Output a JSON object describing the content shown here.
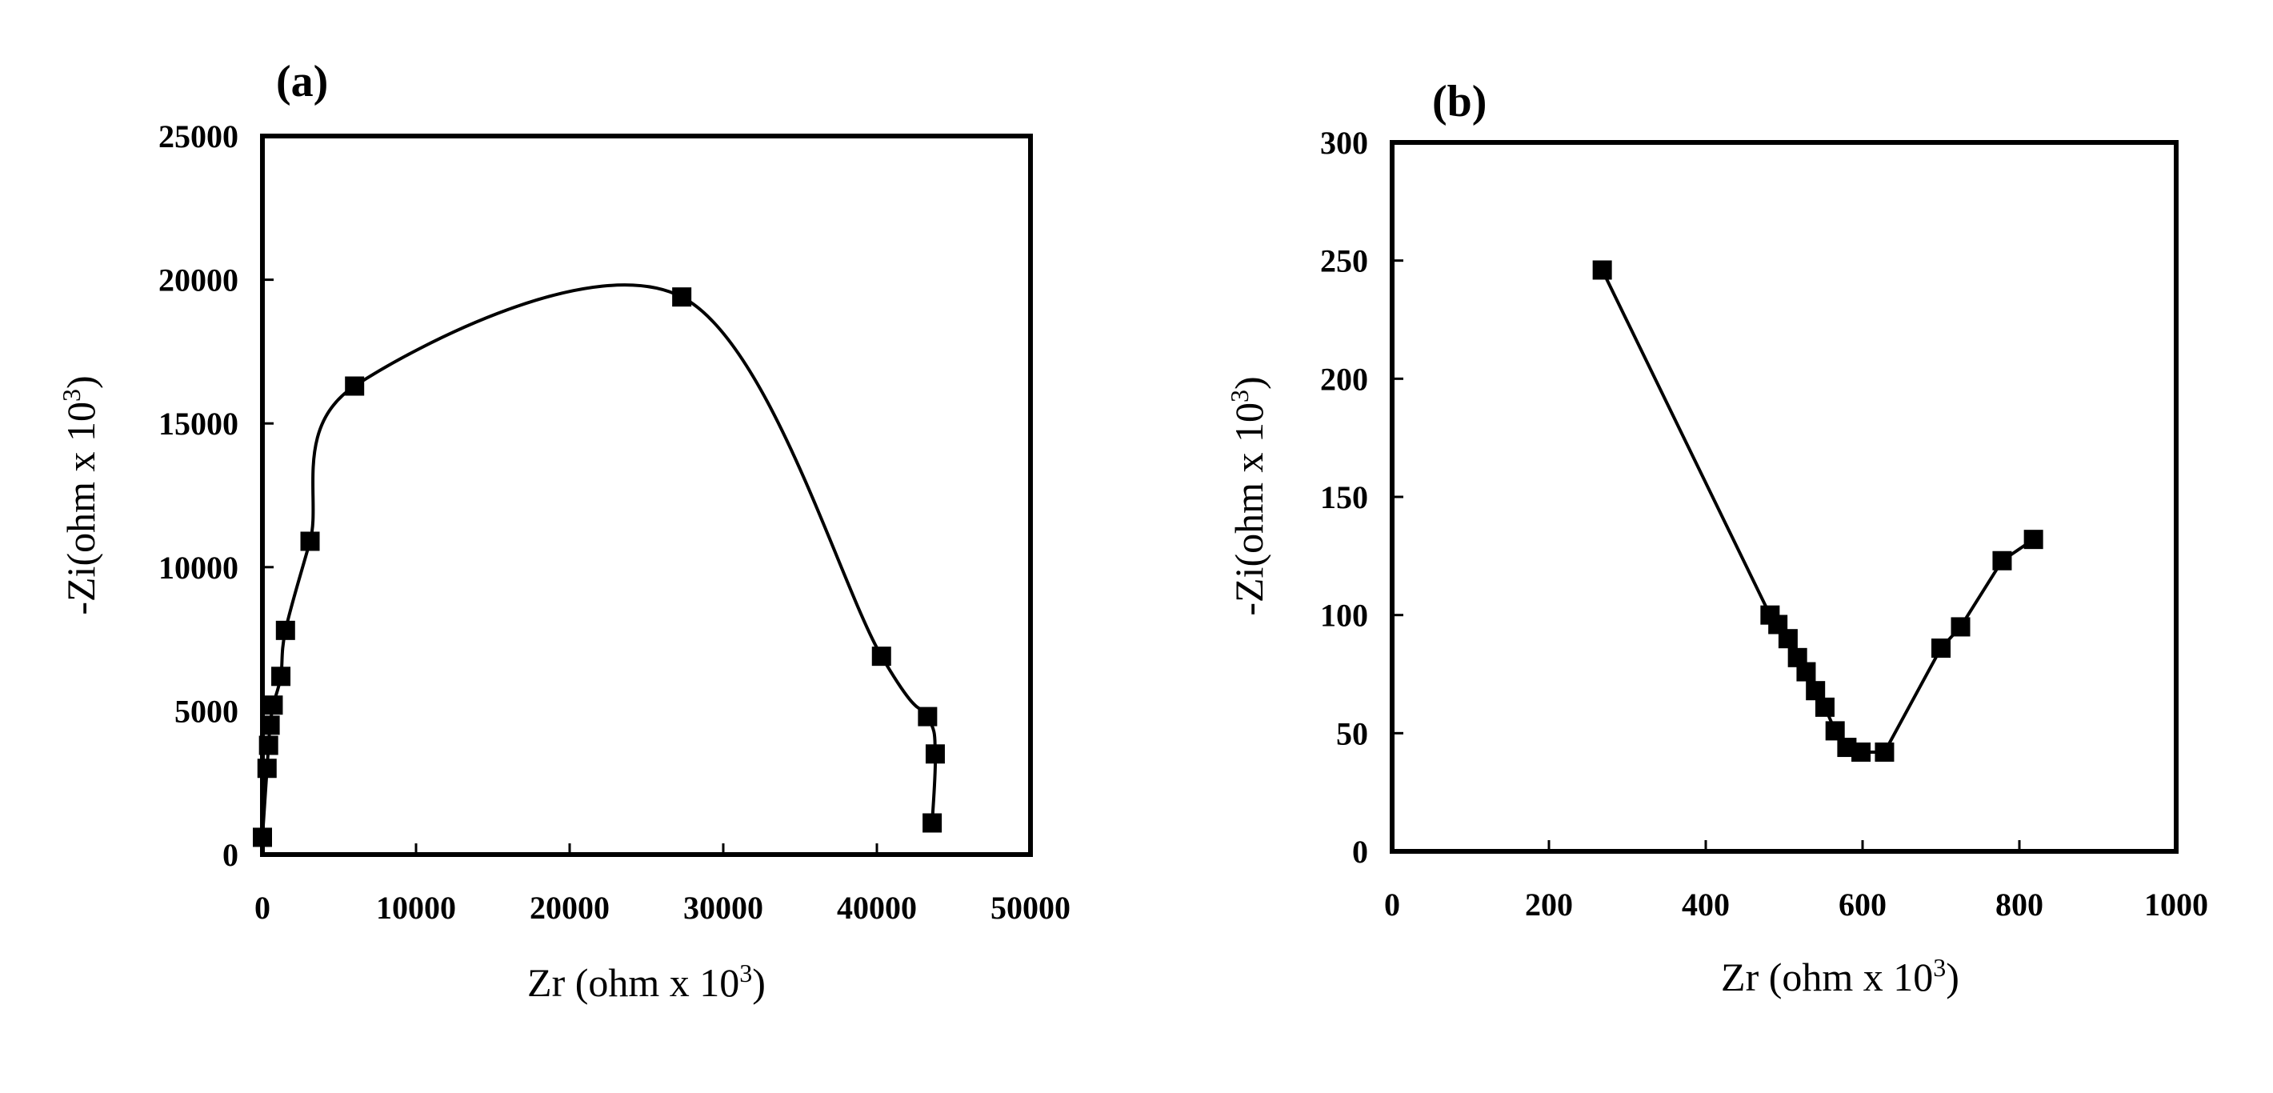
{
  "chart_data": [
    {
      "type": "line",
      "panel_label": "(a)",
      "title": "",
      "xlabel": "Zr (ohm x 10",
      "xlabel_sup": "3",
      "xlabel_end": ")",
      "ylabel": "-Zi(ohm x 10",
      "ylabel_sup": "3",
      "ylabel_end": ")",
      "xlim": [
        0,
        50000
      ],
      "ylim": [
        0,
        25000
      ],
      "xticks": [
        0,
        10000,
        20000,
        30000,
        40000,
        50000
      ],
      "xtick_labels": [
        "0",
        "10000",
        "20000",
        "30000",
        "40000",
        "50000"
      ],
      "yticks": [
        0,
        5000,
        10000,
        15000,
        20000,
        25000
      ],
      "ytick_labels": [
        "0",
        "5000",
        "10000",
        "15000",
        "20000",
        "25000"
      ],
      "grid": false,
      "legend": "none",
      "series": [
        {
          "name": "impedance",
          "marker": "square",
          "x": [
            0,
            300,
            400,
            500,
            700,
            1200,
            1500,
            3100,
            6000,
            27300,
            40300,
            43300,
            43800,
            43600
          ],
          "y": [
            600,
            3000,
            3800,
            4500,
            5200,
            6200,
            7800,
            10900,
            16300,
            19400,
            6900,
            4800,
            3500,
            1100
          ]
        }
      ]
    },
    {
      "type": "line",
      "panel_label": "(b)",
      "title": "",
      "xlabel": "Zr (ohm x 10",
      "xlabel_sup": "3",
      "xlabel_end": ")",
      "ylabel": "-Zi(ohm x 10",
      "ylabel_sup": "3",
      "ylabel_end": ")",
      "xlim": [
        0,
        1000
      ],
      "ylim": [
        0,
        300
      ],
      "xticks": [
        0,
        200,
        400,
        600,
        800,
        1000
      ],
      "xtick_labels": [
        "0",
        "200",
        "400",
        "600",
        "800",
        "1000"
      ],
      "yticks": [
        0,
        50,
        100,
        150,
        200,
        250,
        300
      ],
      "ytick_labels": [
        "0",
        "50",
        "100",
        "150",
        "200",
        "250",
        "300"
      ],
      "grid": false,
      "legend": "none",
      "series": [
        {
          "name": "impedance",
          "marker": "square",
          "x": [
            268,
            482,
            492,
            505,
            517,
            528,
            540,
            552,
            565,
            580,
            598,
            628,
            700,
            725,
            778,
            818
          ],
          "y": [
            246,
            100,
            96,
            90,
            82,
            76,
            68,
            61,
            51,
            44,
            42,
            42,
            86,
            95,
            123,
            132
          ]
        }
      ]
    }
  ]
}
